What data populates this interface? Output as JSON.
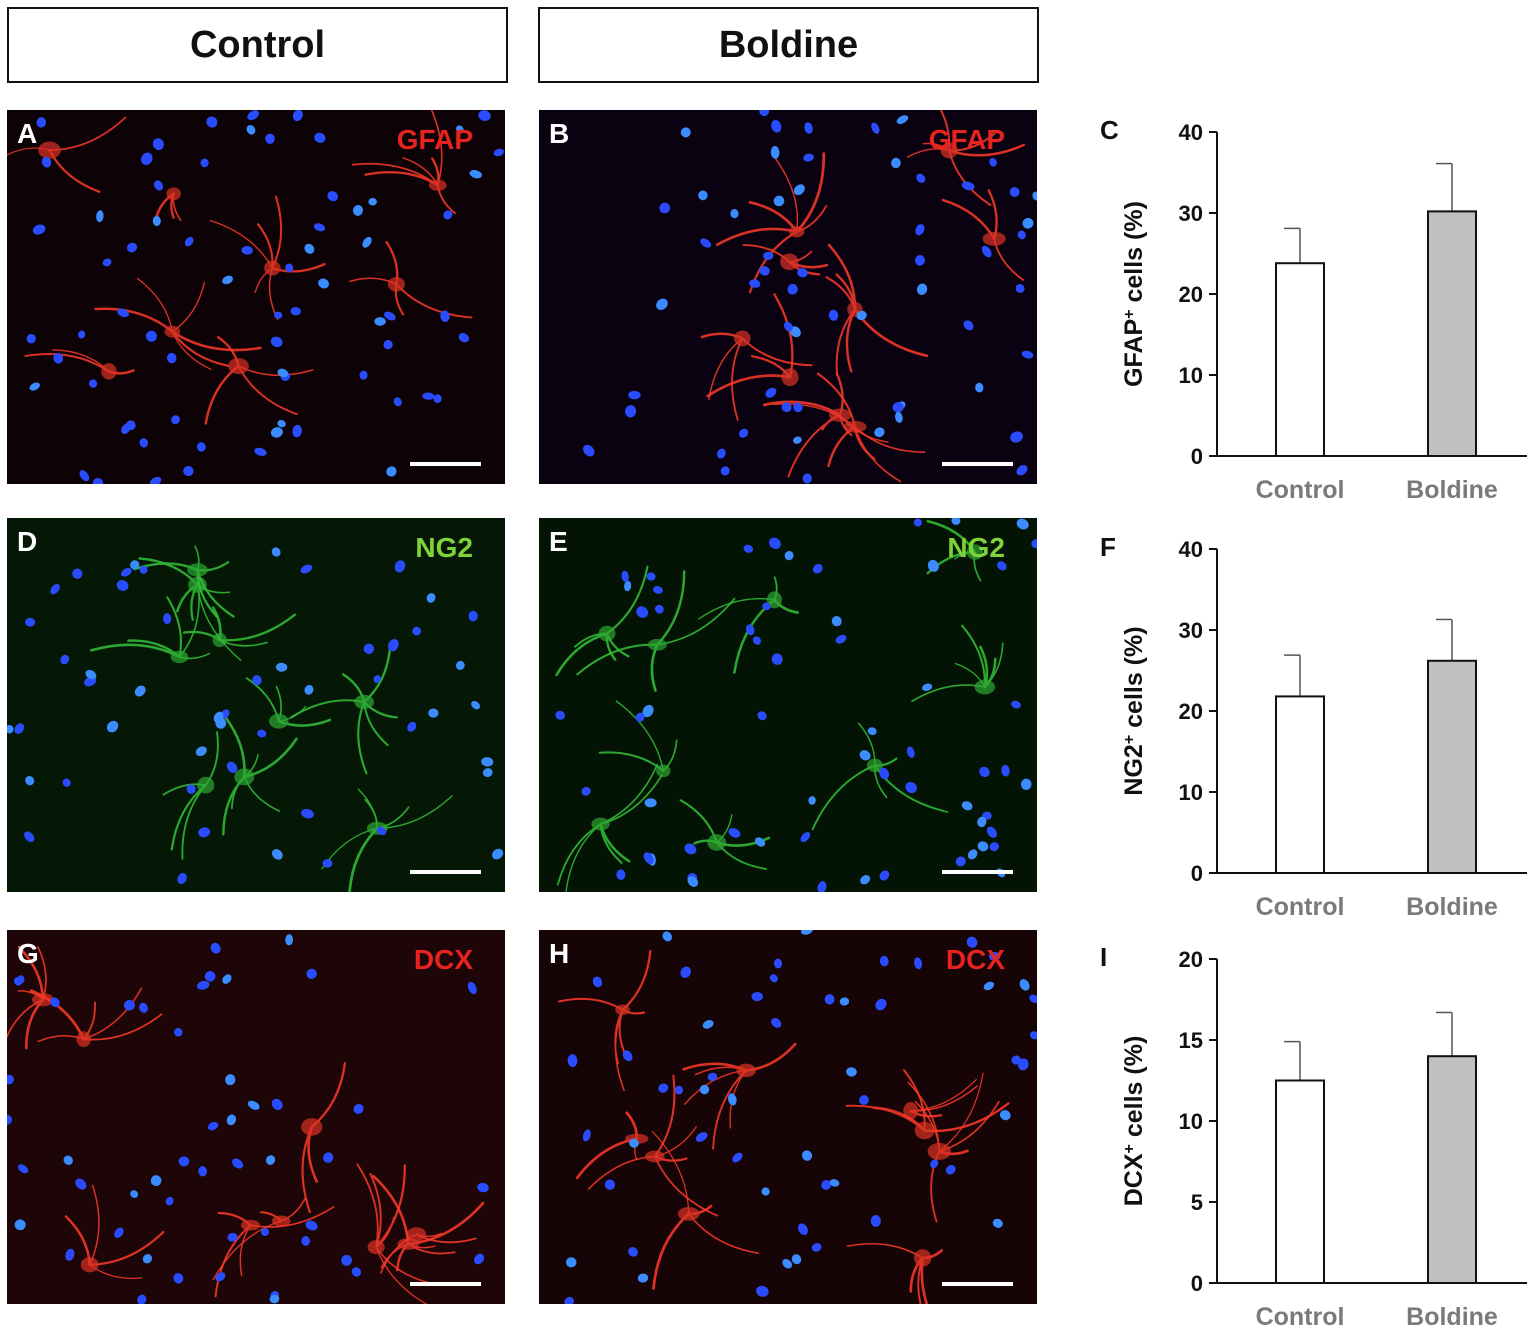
{
  "headers": {
    "control": "Control",
    "boldine": "Boldine"
  },
  "panels": [
    {
      "letter": "A",
      "marker": "GFAP",
      "stain": "red",
      "marker_color": "#e8231f",
      "bg": "#0d0206"
    },
    {
      "letter": "B",
      "marker": "GFAP",
      "stain": "red",
      "marker_color": "#e8231f",
      "bg": "#0a0210"
    },
    {
      "letter": "D",
      "marker": "NG2",
      "stain": "green",
      "marker_color": "#7fd33a",
      "bg": "#051805"
    },
    {
      "letter": "E",
      "marker": "NG2",
      "stain": "green",
      "marker_color": "#7fd33a",
      "bg": "#041404"
    },
    {
      "letter": "G",
      "marker": "DCX",
      "stain": "red",
      "marker_color": "#e8231f",
      "bg": "#1d0508"
    },
    {
      "letter": "H",
      "marker": "DCX",
      "stain": "red",
      "marker_color": "#e8231f",
      "bg": "#170407"
    }
  ],
  "chart_data": [
    {
      "type": "bar",
      "letter": "C",
      "categories": [
        "Control",
        "Boldine"
      ],
      "values": [
        23.8,
        30.2
      ],
      "errors": [
        4.3,
        5.9
      ],
      "ylabel_main": "GFAP",
      "ylabel_sup": "+",
      "ylabel_rest": " cells (%)",
      "ylim": [
        0,
        40
      ],
      "yticks": [
        0,
        10,
        20,
        30,
        40
      ],
      "bar_colors": [
        "#ffffff",
        "#c0c0c0"
      ]
    },
    {
      "type": "bar",
      "letter": "F",
      "categories": [
        "Control",
        "Boldine"
      ],
      "values": [
        21.8,
        26.2
      ],
      "errors": [
        5.1,
        5.1
      ],
      "ylabel_main": "NG2",
      "ylabel_sup": "+",
      "ylabel_rest": " cells (%)",
      "ylim": [
        0,
        40
      ],
      "yticks": [
        0,
        10,
        20,
        30,
        40
      ],
      "bar_colors": [
        "#ffffff",
        "#c0c0c0"
      ]
    },
    {
      "type": "bar",
      "letter": "I",
      "categories": [
        "Control",
        "Boldine"
      ],
      "values": [
        12.5,
        14.0
      ],
      "errors": [
        2.4,
        2.7
      ],
      "ylabel_main": "DCX",
      "ylabel_sup": "+",
      "ylabel_rest": " cells (%)",
      "ylim": [
        0,
        20
      ],
      "yticks": [
        0,
        5,
        10,
        15,
        20
      ],
      "bar_colors": [
        "#ffffff",
        "#c0c0c0"
      ]
    }
  ]
}
